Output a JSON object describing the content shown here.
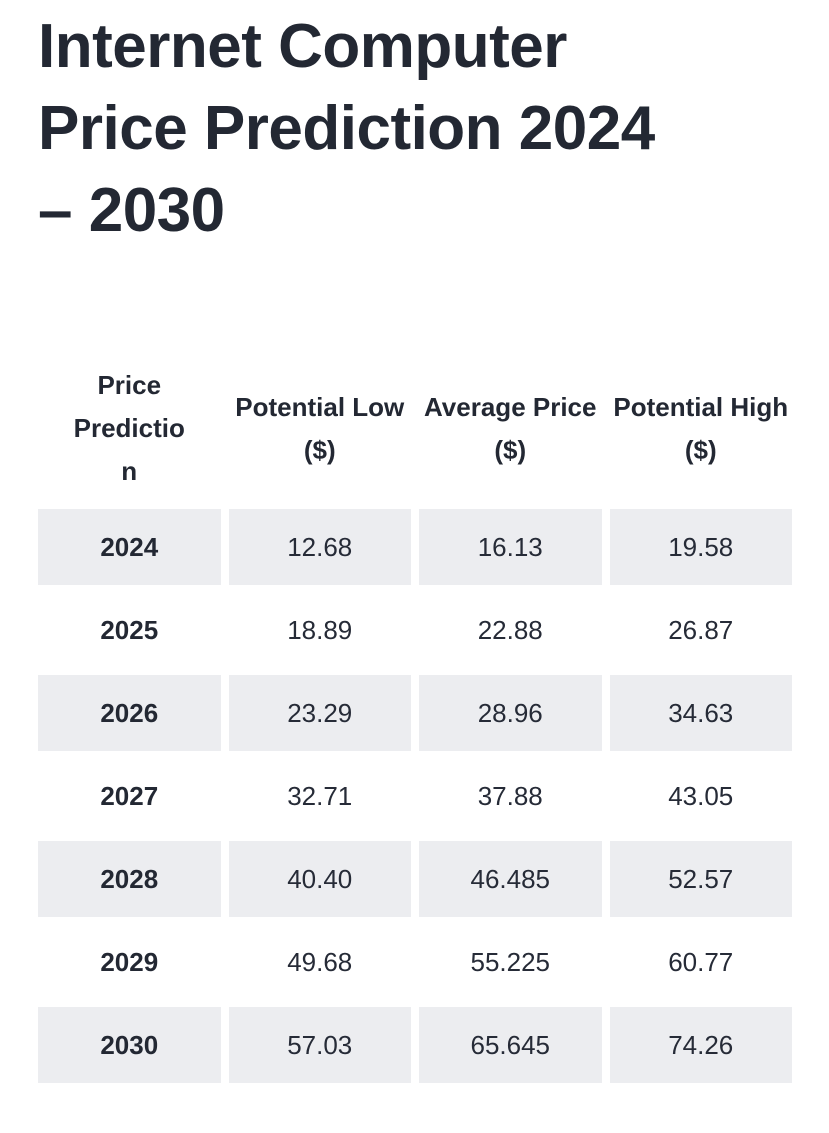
{
  "header": {
    "title": "Internet Computer Price Prediction 2024 – 2030"
  },
  "colors": {
    "background": "#ffffff",
    "text_primary": "#232833",
    "row_shade": "#ecedf0"
  },
  "table": {
    "columns": [
      "Price Prediction",
      "Potential Low ($)",
      "Average Price ($)",
      "Potential High ($)"
    ],
    "rows": [
      {
        "year": "2024",
        "low": "12.68",
        "avg": "16.13",
        "high": "19.58"
      },
      {
        "year": "2025",
        "low": "18.89",
        "avg": "22.88",
        "high": "26.87"
      },
      {
        "year": "2026",
        "low": "23.29",
        "avg": "28.96",
        "high": "34.63"
      },
      {
        "year": "2027",
        "low": "32.71",
        "avg": "37.88",
        "high": "43.05"
      },
      {
        "year": "2028",
        "low": "40.40",
        "avg": "46.485",
        "high": "52.57"
      },
      {
        "year": "2029",
        "low": "49.68",
        "avg": "55.225",
        "high": "60.77"
      },
      {
        "year": "2030",
        "low": "57.03",
        "avg": "65.645",
        "high": "74.26"
      }
    ]
  },
  "chart_data": {
    "type": "table",
    "title": "Internet Computer Price Prediction 2024 – 2030",
    "columns": [
      "Price Prediction",
      "Potential Low ($)",
      "Average Price ($)",
      "Potential High ($)"
    ],
    "rows": [
      [
        "2024",
        12.68,
        16.13,
        19.58
      ],
      [
        "2025",
        18.89,
        22.88,
        26.87
      ],
      [
        "2026",
        23.29,
        28.96,
        34.63
      ],
      [
        "2027",
        32.71,
        37.88,
        43.05
      ],
      [
        "2028",
        40.4,
        46.485,
        52.57
      ],
      [
        "2029",
        49.68,
        55.225,
        60.77
      ],
      [
        "2030",
        57.03,
        65.645,
        74.26
      ]
    ],
    "notes": "Rows for even years (2024, 2026, 2028, 2030) have light gray shaded cells; odd years on white."
  }
}
